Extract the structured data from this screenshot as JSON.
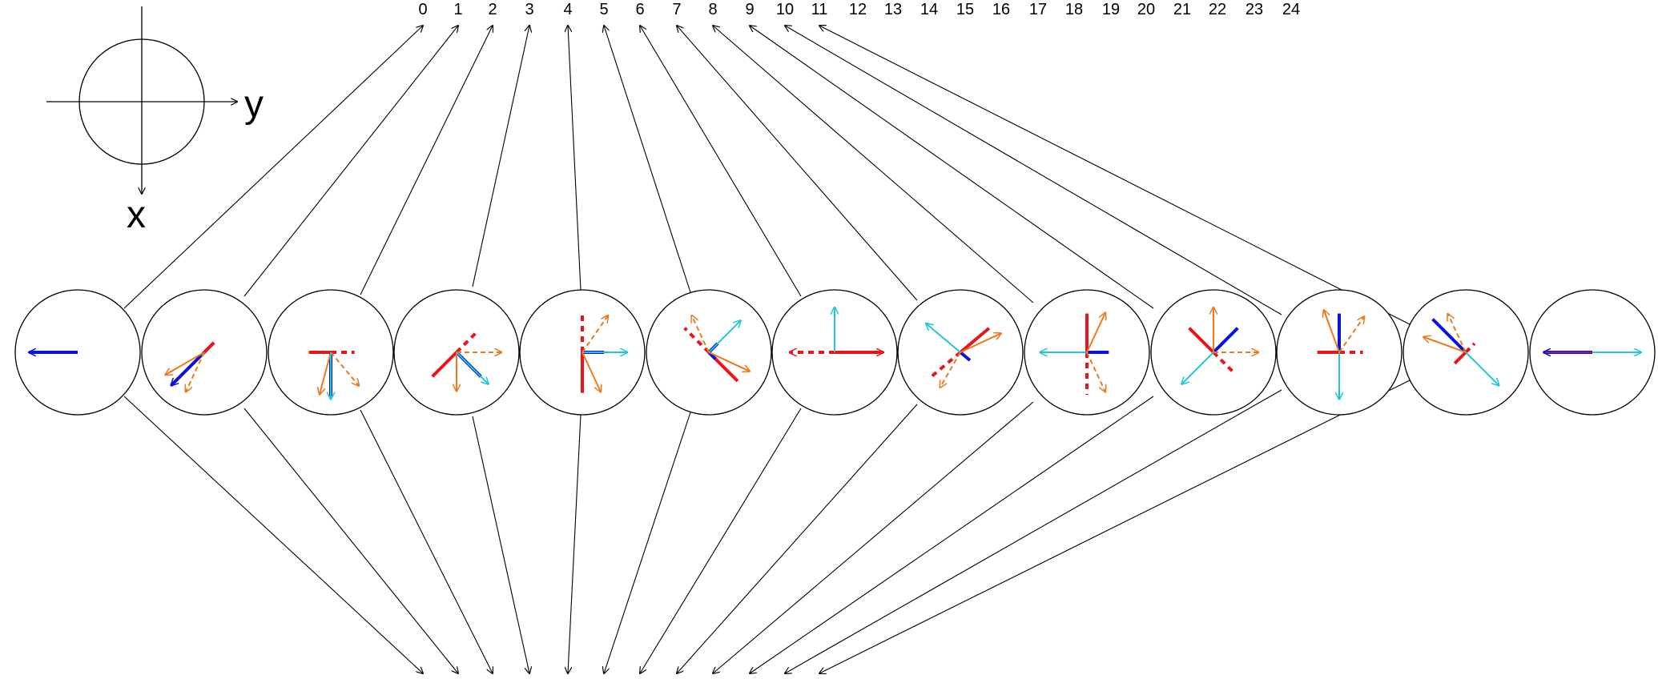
{
  "axis_legend": {
    "x_label": "x",
    "y_label": "y"
  },
  "top_labels": [
    "0",
    "1",
    "2",
    "3",
    "4",
    "5",
    "6",
    "7",
    "8",
    "9",
    "10",
    "11",
    "12",
    "13",
    "14",
    "15",
    "16",
    "17",
    "18",
    "19",
    "20",
    "21",
    "22",
    "23",
    "24"
  ],
  "colors": {
    "red": "#e8161c",
    "blue": "#0a14d8",
    "orange": "#f07818",
    "cyan": "#20c8d0",
    "line": "#000000"
  },
  "circle_count": 13,
  "icons": [
    "arrow-icon"
  ]
}
